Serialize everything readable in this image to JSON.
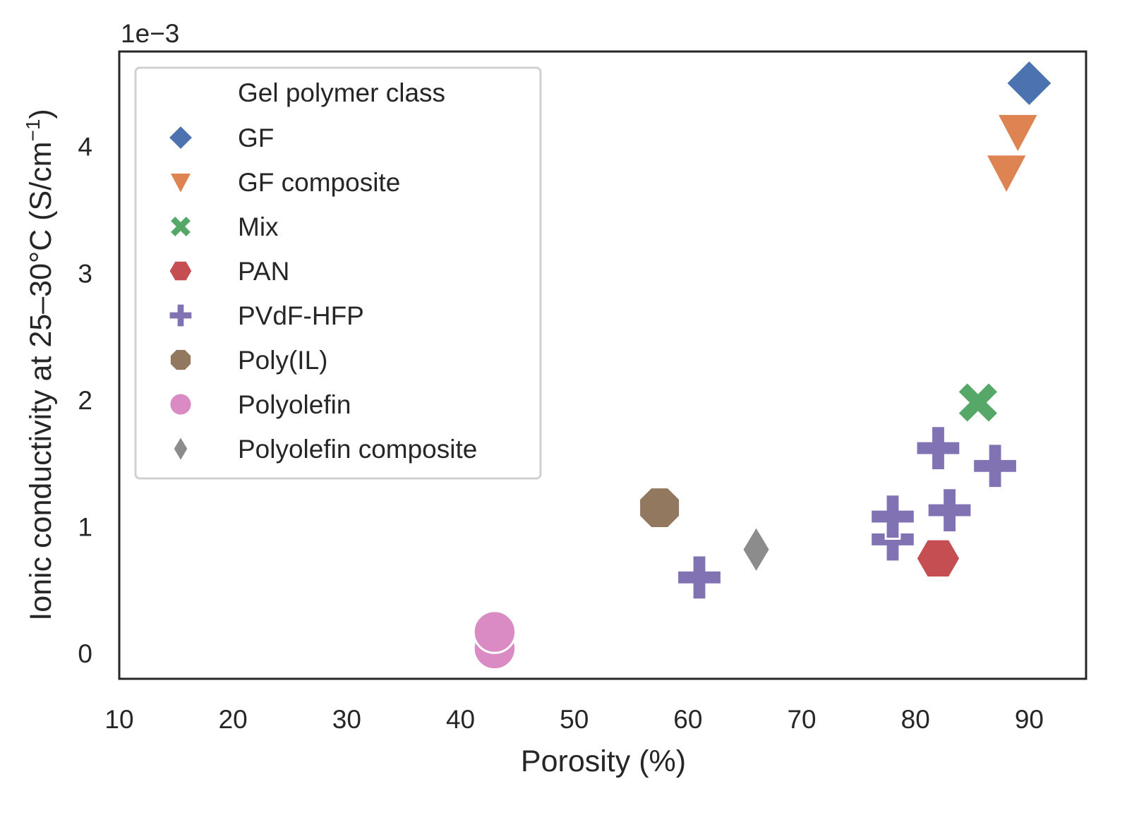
{
  "chart_data": {
    "type": "scatter",
    "xlabel": "Porosity (%)",
    "ylabel": "Ionic conductivity at 25–30°C (S/cm",
    "ylabel_sup": "−1",
    "ylabel_close": ")",
    "y_offset_label": "1e−3",
    "xlim": [
      10,
      95
    ],
    "ylim": [
      -0.2,
      4.75
    ],
    "xticks": [
      10,
      20,
      30,
      40,
      50,
      60,
      70,
      80,
      90
    ],
    "yticks": [
      0,
      1,
      2,
      3,
      4
    ],
    "grid": false,
    "legend": {
      "title": "Gel polymer class",
      "position": "upper-left"
    },
    "series": [
      {
        "name": "GF",
        "marker": "diamond",
        "color": "#4c72b0",
        "points": [
          {
            "x": 90,
            "y": 4.5
          }
        ]
      },
      {
        "name": "GF composite",
        "marker": "triangle-down",
        "color": "#dd8452",
        "points": [
          {
            "x": 89,
            "y": 4.12
          },
          {
            "x": 88,
            "y": 3.8
          }
        ]
      },
      {
        "name": "Mix",
        "marker": "x",
        "color": "#55a868",
        "points": [
          {
            "x": 85.5,
            "y": 1.98
          }
        ]
      },
      {
        "name": "PAN",
        "marker": "hexagon",
        "color": "#c44e52",
        "points": [
          {
            "x": 82,
            "y": 0.75
          }
        ]
      },
      {
        "name": "PVdF-HFP",
        "marker": "plus",
        "color": "#8172b3",
        "points": [
          {
            "x": 61,
            "y": 0.6
          },
          {
            "x": 78,
            "y": 0.9
          },
          {
            "x": 78,
            "y": 1.08
          },
          {
            "x": 82,
            "y": 1.62
          },
          {
            "x": 83,
            "y": 1.13
          },
          {
            "x": 87,
            "y": 1.48
          }
        ]
      },
      {
        "name": "Poly(IL)",
        "marker": "octagon",
        "color": "#937860",
        "points": [
          {
            "x": 57.5,
            "y": 1.15
          }
        ]
      },
      {
        "name": "Polyolefin",
        "marker": "circle",
        "color": "#da8bc3",
        "points": [
          {
            "x": 43,
            "y": 0.04
          },
          {
            "x": 43,
            "y": 0.17
          }
        ]
      },
      {
        "name": "Polyolefin composite",
        "marker": "thin-diamond",
        "color": "#8c8c8c",
        "points": [
          {
            "x": 66,
            "y": 0.82
          }
        ]
      }
    ]
  }
}
